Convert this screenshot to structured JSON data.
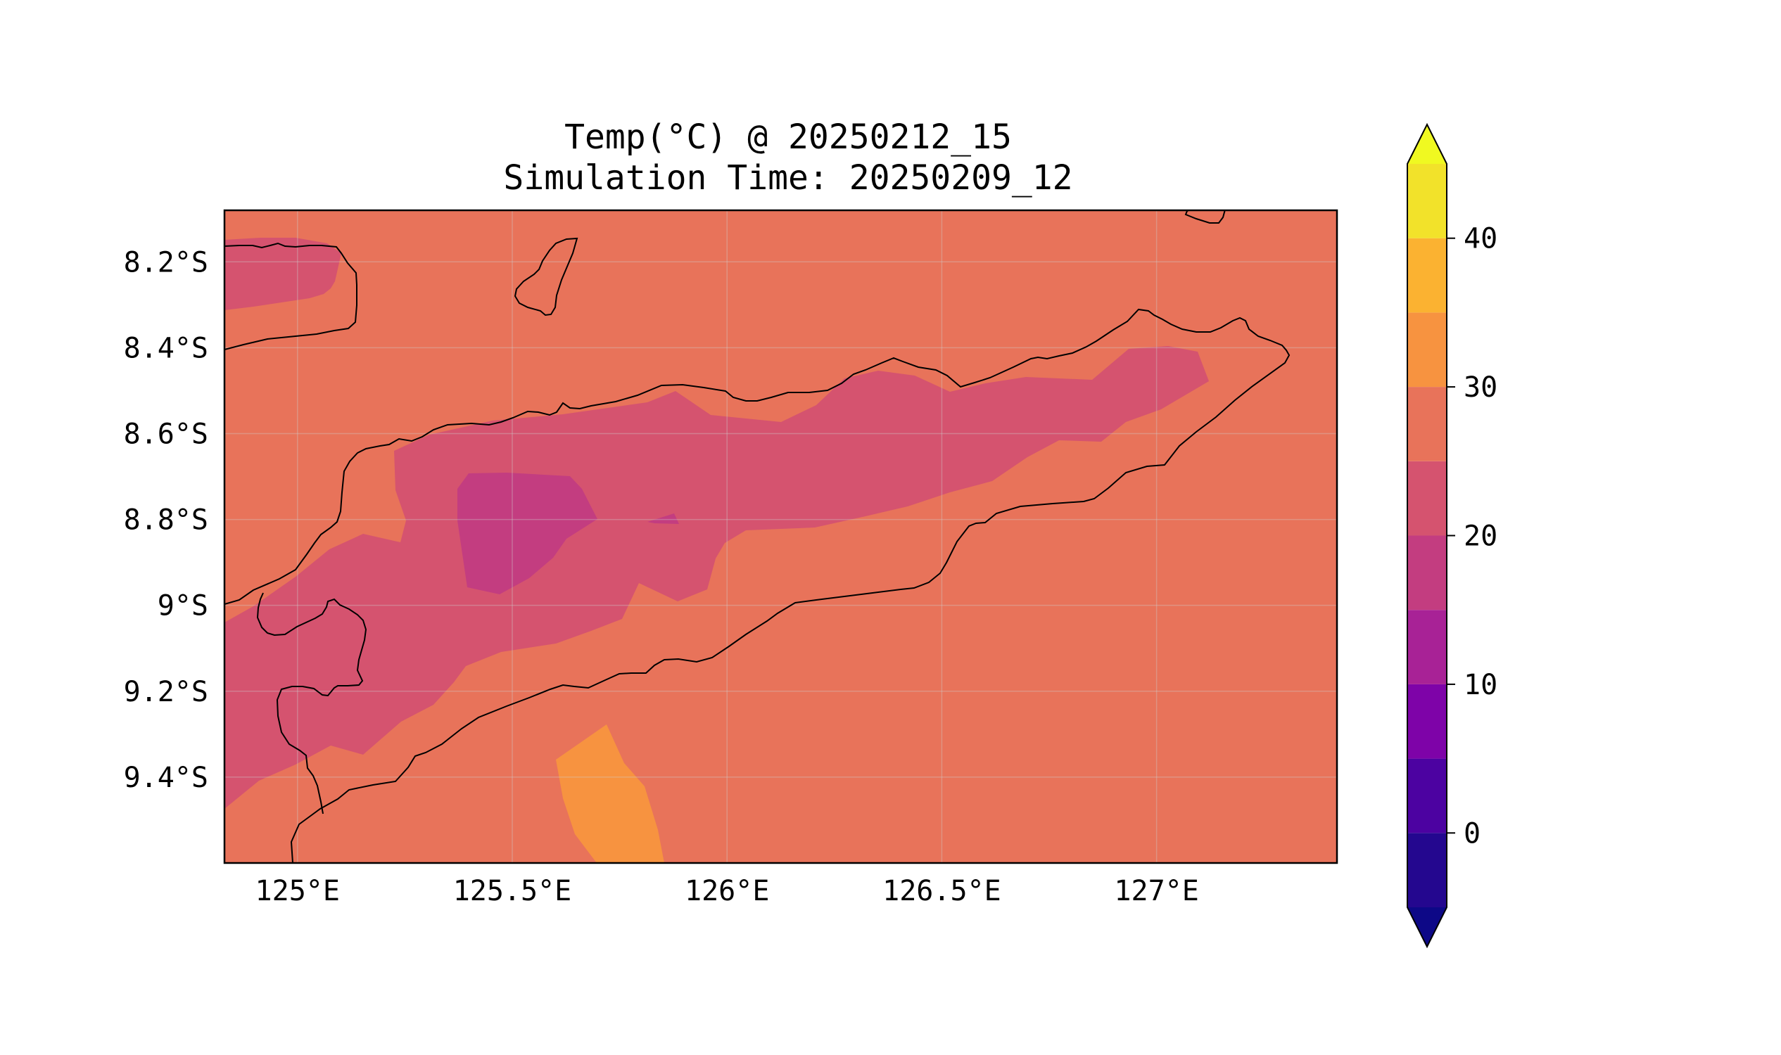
{
  "title": {
    "line1": "Temp(°C) @ 20250212_15",
    "line2": "Simulation Time: 20250209_12"
  },
  "map": {
    "lon_range": [
      124.83,
      127.42
    ],
    "lat_range": [
      -9.6,
      -8.08
    ],
    "x_ticks": [
      {
        "value": 125.0,
        "label": "125°E"
      },
      {
        "value": 125.5,
        "label": "125.5°E"
      },
      {
        "value": 126.0,
        "label": "126°E"
      },
      {
        "value": 126.5,
        "label": "126.5°E"
      },
      {
        "value": 127.0,
        "label": "127°E"
      }
    ],
    "y_ticks": [
      {
        "value": -8.2,
        "label": "8.2°S"
      },
      {
        "value": -8.4,
        "label": "8.4°S"
      },
      {
        "value": -8.6,
        "label": "8.6°S"
      },
      {
        "value": -8.8,
        "label": "8.8°S"
      },
      {
        "value": -9.0,
        "label": "9°S"
      },
      {
        "value": -9.2,
        "label": "9.2°S"
      },
      {
        "value": -9.4,
        "label": "9.4°S"
      }
    ],
    "background_fill": "#e8735a",
    "gridlines": true
  },
  "colorbar": {
    "range": [
      -5,
      45
    ],
    "extend": "both",
    "levels": [
      {
        "from": -5,
        "to": 0,
        "color": "#24078f"
      },
      {
        "from": 0,
        "to": 5,
        "color": "#4c02a1"
      },
      {
        "from": 5,
        "to": 10,
        "color": "#7e03a8"
      },
      {
        "from": 10,
        "to": 15,
        "color": "#a82296"
      },
      {
        "from": 15,
        "to": 20,
        "color": "#c33d80"
      },
      {
        "from": 20,
        "to": 25,
        "color": "#d5536f"
      },
      {
        "from": 25,
        "to": 30,
        "color": "#e8735a"
      },
      {
        "from": 30,
        "to": 35,
        "color": "#f79340"
      },
      {
        "from": 35,
        "to": 40,
        "color": "#fbb231"
      },
      {
        "from": 40,
        "to": 45,
        "color": "#f2e22a"
      }
    ],
    "under_color": "#0d0887",
    "over_color": "#f0f921",
    "ticks": [
      {
        "value": 0,
        "label": "0"
      },
      {
        "value": 10,
        "label": "10"
      },
      {
        "value": 20,
        "label": "20"
      },
      {
        "value": 30,
        "label": "30"
      },
      {
        "value": 40,
        "label": "40"
      }
    ]
  }
}
